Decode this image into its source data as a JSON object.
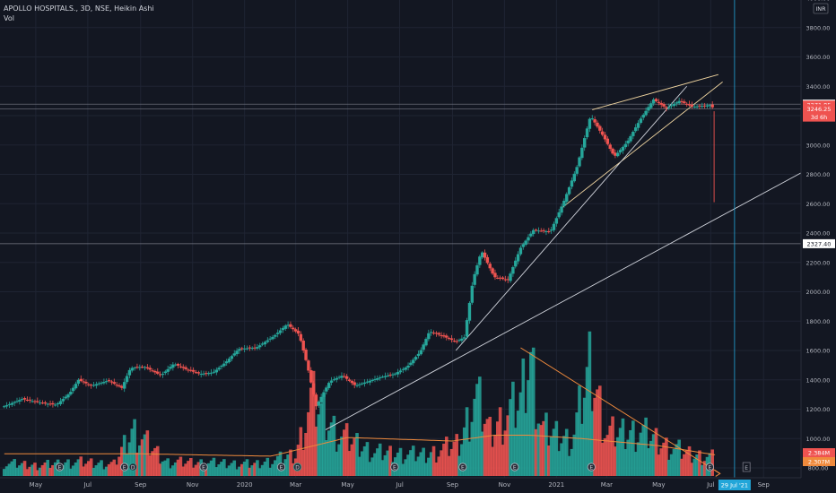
{
  "header": {
    "symbol_line": "APOLLO HOSPITALS., 3D, NSE, Heikin Ashi",
    "vol_label": "Vol",
    "currency": "INR"
  },
  "axis": {
    "x_labels": [
      {
        "label": "May",
        "date": "2019-05-01"
      },
      {
        "label": "Jul",
        "date": "2019-07-01"
      },
      {
        "label": "Sep",
        "date": "2019-09-01"
      },
      {
        "label": "Nov",
        "date": "2019-11-01"
      },
      {
        "label": "2020",
        "date": "2020-01-01"
      },
      {
        "label": "Mar",
        "date": "2020-03-01"
      },
      {
        "label": "May",
        "date": "2020-05-01"
      },
      {
        "label": "Jul",
        "date": "2020-07-01"
      },
      {
        "label": "Sep",
        "date": "2020-09-01"
      },
      {
        "label": "Nov",
        "date": "2020-11-01"
      },
      {
        "label": "2021",
        "date": "2021-01-01"
      },
      {
        "label": "Mar",
        "date": "2021-03-01"
      },
      {
        "label": "May",
        "date": "2021-05-01"
      },
      {
        "label": "Jul",
        "date": "2021-07-01"
      },
      {
        "label": "Sep",
        "date": "2021-09-01"
      }
    ],
    "y_ticks": [
      800,
      1000,
      1200,
      1400,
      1600,
      1800,
      2000,
      2200,
      2400,
      2600,
      2800,
      3000,
      3200,
      3400,
      3600,
      3800,
      4000
    ],
    "y_tick_labels": [
      "800.00",
      "1000.00",
      "1200.00",
      "1400.00",
      "1600.00",
      "1800.00",
      "2000.00",
      "2200.00",
      "2400.00",
      "2600.00",
      "2800.00",
      "3000.00",
      "3200.00",
      "3400.00",
      "3600.00",
      "3800.00",
      "4000.00"
    ]
  },
  "price_labels": [
    {
      "text": "3278.25",
      "value": 3278.25,
      "bg": "#ffffff",
      "fg": "#131722"
    },
    {
      "text": "3271.85",
      "value": 3271.85,
      "bg": "#ef5350",
      "fg": "#ffffff"
    },
    {
      "text": "3246.25",
      "value": 3246.25,
      "bg": "#ef5350",
      "fg": "#ffffff"
    },
    {
      "text": "3d 6h",
      "value": 3190,
      "bg": "#ef5350",
      "fg": "#ffffff"
    },
    {
      "text": "2327.40",
      "value": 2327.4,
      "bg": "#ffffff",
      "fg": "#131722"
    }
  ],
  "volume_labels": [
    {
      "text": "2.384M",
      "bg": "#ef5350",
      "fg": "#ffffff"
    },
    {
      "text": "2.307M",
      "bg": "#f08a3c",
      "fg": "#ffffff"
    }
  ],
  "crosshair": {
    "date": "2021-07-29",
    "label": "29 Jul '21"
  },
  "horizontal_lines": [
    3278.25,
    3246.25,
    2327.4
  ],
  "event_markers": {
    "earnings_dates": [
      "2019-05-29",
      "2019-08-13",
      "2019-11-14",
      "2020-02-13",
      "2020-06-25",
      "2020-09-13",
      "2020-11-13",
      "2021-02-11",
      "2021-06-30"
    ],
    "dividend_dates": [
      "2019-08-23",
      "2020-03-03"
    ],
    "future_marker_date": "2021-08-12",
    "earnings_glyph": "E",
    "dividend_glyph": "D"
  },
  "colors": {
    "up": "#26a69a",
    "down": "#ef5350",
    "up_vol": "#26a69a",
    "down_vol": "#ef5350",
    "trendline": "#d1d4dc",
    "wedge": "#f0d5a0",
    "ma": "#f08a3c",
    "crosshair": "#22a6d9",
    "hline": "#787b86"
  },
  "chart_data": {
    "type": "candlestick",
    "title": "APOLLO HOSPITALS., 3D, NSE, Heikin Ashi",
    "currency": "INR",
    "ylim": [
      800,
      4000
    ],
    "xlim": [
      "2019-03-20",
      "2021-10-15"
    ],
    "price_path": [
      [
        "2019-03-25",
        1220
      ],
      [
        "2019-04-15",
        1270
      ],
      [
        "2019-05-10",
        1240
      ],
      [
        "2019-05-25",
        1230
      ],
      [
        "2019-06-10",
        1310
      ],
      [
        "2019-06-20",
        1400
      ],
      [
        "2019-07-05",
        1360
      ],
      [
        "2019-07-25",
        1395
      ],
      [
        "2019-08-10",
        1345
      ],
      [
        "2019-08-20",
        1480
      ],
      [
        "2019-09-05",
        1490
      ],
      [
        "2019-09-25",
        1430
      ],
      [
        "2019-10-10",
        1510
      ],
      [
        "2019-10-25",
        1470
      ],
      [
        "2019-11-10",
        1440
      ],
      [
        "2019-11-25",
        1450
      ],
      [
        "2019-12-10",
        1520
      ],
      [
        "2019-12-25",
        1610
      ],
      [
        "2020-01-15",
        1620
      ],
      [
        "2020-02-05",
        1700
      ],
      [
        "2020-02-20",
        1780
      ],
      [
        "2020-03-05",
        1710
      ],
      [
        "2020-03-15",
        1490
      ],
      [
        "2020-03-25",
        1220
      ],
      [
        "2020-04-10",
        1390
      ],
      [
        "2020-04-25",
        1430
      ],
      [
        "2020-05-10",
        1360
      ],
      [
        "2020-05-25",
        1390
      ],
      [
        "2020-06-10",
        1420
      ],
      [
        "2020-06-25",
        1440
      ],
      [
        "2020-07-10",
        1490
      ],
      [
        "2020-07-25",
        1590
      ],
      [
        "2020-08-05",
        1730
      ],
      [
        "2020-08-20",
        1700
      ],
      [
        "2020-09-05",
        1660
      ],
      [
        "2020-09-15",
        1690
      ],
      [
        "2020-09-25",
        2080
      ],
      [
        "2020-10-05",
        2280
      ],
      [
        "2020-10-20",
        2100
      ],
      [
        "2020-11-05",
        2080
      ],
      [
        "2020-11-20",
        2300
      ],
      [
        "2020-12-05",
        2420
      ],
      [
        "2020-12-25",
        2410
      ],
      [
        "2021-01-10",
        2620
      ],
      [
        "2021-01-25",
        2850
      ],
      [
        "2021-02-10",
        3200
      ],
      [
        "2021-02-25",
        3060
      ],
      [
        "2021-03-10",
        2920
      ],
      [
        "2021-03-25",
        3020
      ],
      [
        "2021-04-10",
        3180
      ],
      [
        "2021-04-25",
        3310
      ],
      [
        "2021-05-10",
        3250
      ],
      [
        "2021-05-25",
        3300
      ],
      [
        "2021-06-10",
        3260
      ],
      [
        "2021-06-30",
        3271.85
      ],
      [
        "2021-07-05",
        3246.25
      ]
    ],
    "volume_path": [
      [
        "2019-03-25",
        0.55
      ],
      [
        "2019-05-01",
        0.45
      ],
      [
        "2019-06-20",
        0.6
      ],
      [
        "2019-08-01",
        0.5
      ],
      [
        "2019-08-23",
        2.0
      ],
      [
        "2019-10-01",
        0.6
      ],
      [
        "2019-12-01",
        0.55
      ],
      [
        "2020-01-15",
        0.5
      ],
      [
        "2020-03-01",
        0.9
      ],
      [
        "2020-03-20",
        3.3
      ],
      [
        "2020-04-20",
        1.8
      ],
      [
        "2020-06-01",
        1.0
      ],
      [
        "2020-08-01",
        0.9
      ],
      [
        "2020-09-10",
        1.4
      ],
      [
        "2020-09-28",
        3.5
      ],
      [
        "2020-10-15",
        1.9
      ],
      [
        "2020-11-20",
        3.2
      ],
      [
        "2020-12-01",
        5.3
      ],
      [
        "2020-12-15",
        2.0
      ],
      [
        "2021-01-20",
        1.5
      ],
      [
        "2021-02-10",
        4.8
      ],
      [
        "2021-03-01",
        1.8
      ],
      [
        "2021-04-10",
        1.9
      ],
      [
        "2021-05-10",
        1.3
      ],
      [
        "2021-06-10",
        0.9
      ],
      [
        "2021-07-05",
        0.8
      ]
    ],
    "volume_ma_path": [
      [
        "2019-03-25",
        0.95
      ],
      [
        "2019-09-01",
        0.95
      ],
      [
        "2020-02-01",
        0.85
      ],
      [
        "2020-05-01",
        1.65
      ],
      [
        "2020-09-01",
        1.5
      ],
      [
        "2020-10-20",
        1.75
      ],
      [
        "2020-12-01",
        1.75
      ],
      [
        "2021-02-01",
        1.6
      ],
      [
        "2021-05-01",
        1.3
      ],
      [
        "2021-07-07",
        0.9
      ]
    ],
    "trendlines": [
      {
        "name": "channel-upper",
        "color": "#f0d5a0",
        "from": [
          "2021-02-12",
          3240
        ],
        "to": [
          "2021-07-10",
          3480
        ]
      },
      {
        "name": "channel-lower",
        "color": "#f0d5a0",
        "from": [
          "2021-01-07",
          2570
        ],
        "to": [
          "2021-07-15",
          3430
        ]
      },
      {
        "name": "support-1",
        "color": "#d1d4dc",
        "from": [
          "2020-09-05",
          1600
        ],
        "to": [
          "2021-06-03",
          3400
        ]
      },
      {
        "name": "support-2",
        "color": "#d1d4dc",
        "from": [
          "2020-04-05",
          1060
        ],
        "to": [
          "2021-10-15",
          2810
        ]
      }
    ],
    "volume_trendline": {
      "color": "#f08a3c",
      "from": [
        "2020-11-20",
        5.5
      ],
      "to": [
        "2021-07-12",
        0.1
      ]
    },
    "final_wick_low": {
      "date": "2021-07-05",
      "value": 2610
    }
  }
}
